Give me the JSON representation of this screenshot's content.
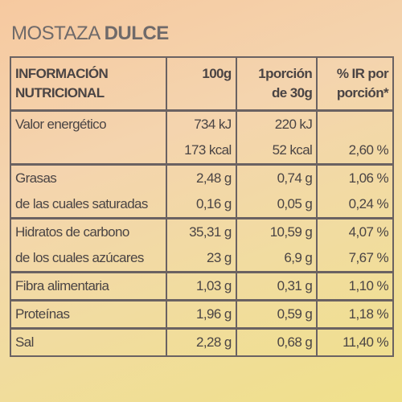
{
  "title": {
    "prefix": "MOSTAZA",
    "emphasis": "DULCE"
  },
  "table": {
    "header": [
      [
        "INFORMACIÓN",
        "NUTRICIONAL"
      ],
      [
        "100g"
      ],
      [
        "1porción",
        "de 30g"
      ],
      [
        "% IR por",
        "porción*"
      ]
    ],
    "sections": [
      [
        [
          "Valor energético",
          "734 kJ",
          "220 kJ",
          null
        ],
        [
          null,
          "173 kcal",
          "52 kcal",
          "2,60 %"
        ]
      ],
      [
        [
          "Grasas",
          "2,48 g",
          "0,74 g",
          "1,06 %"
        ],
        [
          "de las cuales saturadas",
          "0,16 g",
          "0,05 g",
          "0,24 %"
        ]
      ],
      [
        [
          "Hidratos de carbono",
          "35,31 g",
          "10,59 g",
          "4,07 %"
        ],
        [
          "de los cuales azúcares",
          "23 g",
          "6,9 g",
          "7,67 %"
        ]
      ],
      [
        [
          "Fibra alimentaria",
          "1,03 g",
          "0,31 g",
          "1,10 %"
        ]
      ],
      [
        [
          "Proteínas",
          "1,96 g",
          "0,59 g",
          "1,18 %"
        ]
      ],
      [
        [
          "Sal",
          "2,28 g",
          "0,68 g",
          "11,40 %"
        ]
      ]
    ]
  }
}
